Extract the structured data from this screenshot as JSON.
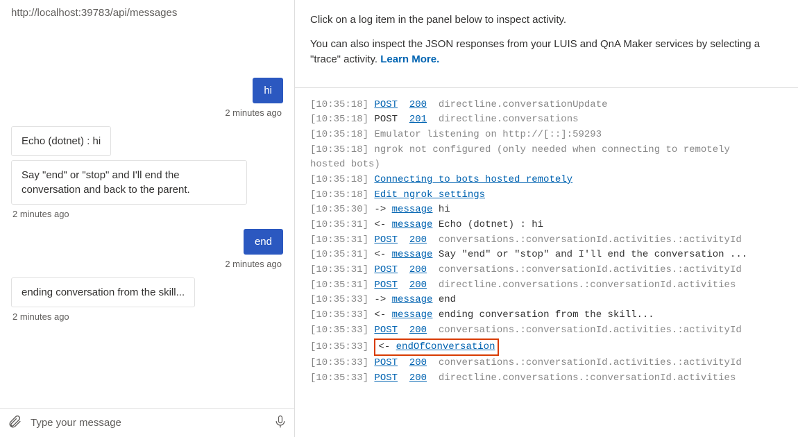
{
  "url": "http://localhost:39783/api/messages",
  "chat": {
    "msg1_user": "hi",
    "ts1": "2 minutes ago",
    "msg2_bot": "Echo (dotnet) : hi",
    "msg3_bot": "Say \"end\" or \"stop\" and I'll end the conversation and back to the parent.",
    "ts2": "2 minutes ago",
    "msg4_user": "end",
    "ts3": "2 minutes ago",
    "msg5_bot": "ending conversation from the skill...",
    "ts4": "2 minutes ago"
  },
  "input": {
    "placeholder": "Type your message"
  },
  "help": {
    "p1": "Click on a log item in the panel below to inspect activity.",
    "p2a": "You can also inspect the JSON responses from your LUIS and QnA Maker services by selecting a \"trace\" activity. ",
    "link": "Learn More."
  },
  "log": [
    {
      "ts": "[10:35:18]",
      "parts": [
        {
          "t": "lnk",
          "v": "POST"
        },
        {
          "t": "sp"
        },
        {
          "t": "lnk",
          "v": "200"
        },
        {
          "t": "sp"
        },
        {
          "t": "gray",
          "v": "directline.conversationUpdate"
        }
      ]
    },
    {
      "ts": "[10:35:18]",
      "parts": [
        {
          "t": "plain",
          "v": "POST"
        },
        {
          "t": "sp"
        },
        {
          "t": "lnk",
          "v": "201"
        },
        {
          "t": "sp"
        },
        {
          "t": "gray",
          "v": "directline.conversations"
        }
      ]
    },
    {
      "ts": "[10:35:18]",
      "parts": [
        {
          "t": "gray",
          "v": "Emulator listening on http://[::]:59293"
        }
      ]
    },
    {
      "ts": "[10:35:18]",
      "parts": [
        {
          "t": "gray",
          "v": "ngrok not configured (only needed when connecting to remotely"
        }
      ]
    },
    {
      "ts": "",
      "parts": [
        {
          "t": "gray",
          "v": "hosted bots)"
        }
      ]
    },
    {
      "ts": "[10:35:18]",
      "parts": [
        {
          "t": "lnk",
          "v": "Connecting to bots hosted remotely"
        }
      ]
    },
    {
      "ts": "[10:35:18]",
      "parts": [
        {
          "t": "lnk",
          "v": "Edit ngrok settings"
        }
      ]
    },
    {
      "ts": "[10:35:30]",
      "parts": [
        {
          "t": "plain",
          "v": "-> "
        },
        {
          "t": "lnk",
          "v": "message"
        },
        {
          "t": "plain",
          "v": " hi"
        }
      ]
    },
    {
      "ts": "[10:35:31]",
      "parts": [
        {
          "t": "plain",
          "v": "<- "
        },
        {
          "t": "lnk",
          "v": "message"
        },
        {
          "t": "plain",
          "v": " Echo (dotnet) : hi"
        }
      ]
    },
    {
      "ts": "[10:35:31]",
      "parts": [
        {
          "t": "lnk",
          "v": "POST"
        },
        {
          "t": "sp"
        },
        {
          "t": "lnk",
          "v": "200"
        },
        {
          "t": "sp"
        },
        {
          "t": "gray",
          "v": "conversations.:conversationId.activities.:activityId"
        }
      ]
    },
    {
      "ts": "[10:35:31]",
      "parts": [
        {
          "t": "plain",
          "v": "<- "
        },
        {
          "t": "lnk",
          "v": "message"
        },
        {
          "t": "plain",
          "v": " Say \"end\" or \"stop\" and I'll end the conversation ..."
        }
      ]
    },
    {
      "ts": "[10:35:31]",
      "parts": [
        {
          "t": "lnk",
          "v": "POST"
        },
        {
          "t": "sp"
        },
        {
          "t": "lnk",
          "v": "200"
        },
        {
          "t": "sp"
        },
        {
          "t": "gray",
          "v": "conversations.:conversationId.activities.:activityId"
        }
      ]
    },
    {
      "ts": "[10:35:31]",
      "parts": [
        {
          "t": "lnk",
          "v": "POST"
        },
        {
          "t": "sp"
        },
        {
          "t": "lnk",
          "v": "200"
        },
        {
          "t": "sp"
        },
        {
          "t": "gray",
          "v": "directline.conversations.:conversationId.activities"
        }
      ]
    },
    {
      "ts": "[10:35:33]",
      "parts": [
        {
          "t": "plain",
          "v": "-> "
        },
        {
          "t": "lnk",
          "v": "message"
        },
        {
          "t": "plain",
          "v": " end"
        }
      ]
    },
    {
      "ts": "[10:35:33]",
      "parts": [
        {
          "t": "plain",
          "v": "<- "
        },
        {
          "t": "lnk",
          "v": "message"
        },
        {
          "t": "plain",
          "v": " ending conversation from the skill..."
        }
      ]
    },
    {
      "ts": "[10:35:33]",
      "parts": [
        {
          "t": "lnk",
          "v": "POST"
        },
        {
          "t": "sp"
        },
        {
          "t": "lnk",
          "v": "200"
        },
        {
          "t": "sp"
        },
        {
          "t": "gray",
          "v": "conversations.:conversationId.activities.:activityId"
        }
      ]
    },
    {
      "ts": "[10:35:33]",
      "highlight": true,
      "parts": [
        {
          "t": "plain",
          "v": "<- "
        },
        {
          "t": "lnk",
          "v": "endOfConversation"
        }
      ]
    },
    {
      "ts": "[10:35:33]",
      "parts": [
        {
          "t": "lnk",
          "v": "POST"
        },
        {
          "t": "sp"
        },
        {
          "t": "lnk",
          "v": "200"
        },
        {
          "t": "sp"
        },
        {
          "t": "gray",
          "v": "conversations.:conversationId.activities.:activityId"
        }
      ]
    },
    {
      "ts": "[10:35:33]",
      "parts": [
        {
          "t": "lnk",
          "v": "POST"
        },
        {
          "t": "sp"
        },
        {
          "t": "lnk",
          "v": "200"
        },
        {
          "t": "sp"
        },
        {
          "t": "gray",
          "v": "directline.conversations.:conversationId.activities"
        }
      ]
    }
  ],
  "colors": {
    "link": "#0063b1",
    "user_bubble": "#2b58c0",
    "highlight_border": "#d83b01"
  }
}
